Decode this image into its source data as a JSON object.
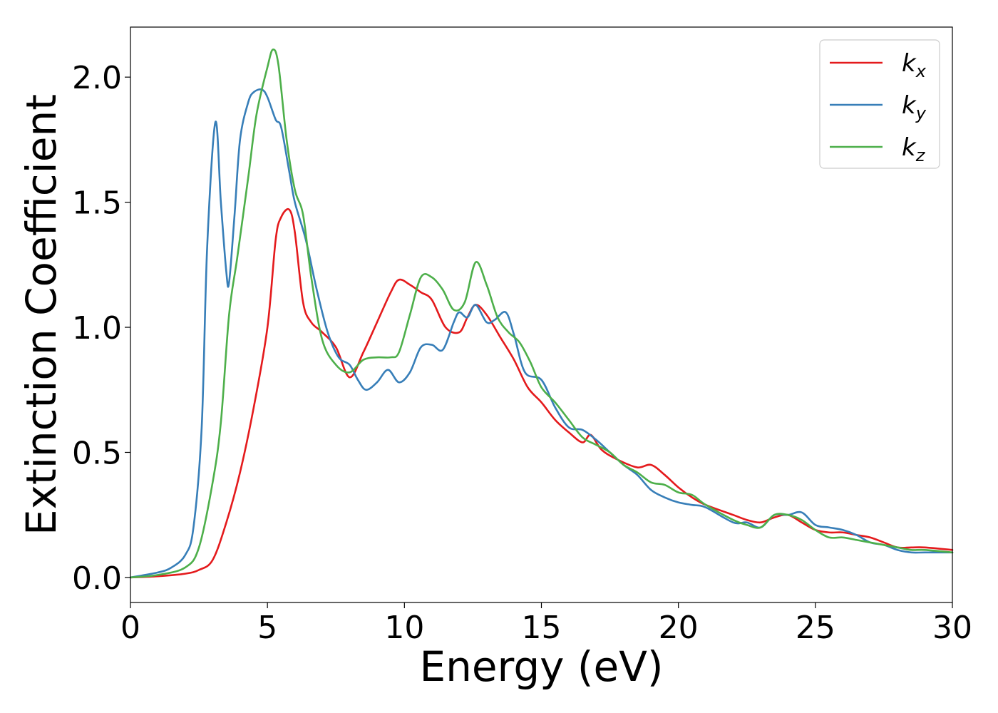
{
  "chart_data": {
    "type": "line",
    "title": "",
    "xlabel": "Energy (eV)",
    "ylabel": "Extinction Coefficient",
    "xlim": [
      0,
      30
    ],
    "ylim": [
      -0.1,
      2.2
    ],
    "xticks": [
      "0",
      "5",
      "10",
      "15",
      "20",
      "25",
      "30"
    ],
    "yticks": [
      "0.0",
      "0.5",
      "1.0",
      "1.5",
      "2.0"
    ],
    "grid": false,
    "legend_position": "top-right",
    "series": [
      {
        "name": "k_x",
        "label_main": "k",
        "label_sub": "x",
        "color": "#e41a1c",
        "x": [
          0,
          1,
          2,
          2.5,
          3,
          3.5,
          4,
          4.5,
          5,
          5.3,
          5.5,
          5.8,
          6,
          6.3,
          6.6,
          7,
          7.5,
          8,
          8.5,
          9,
          9.5,
          9.8,
          10.2,
          10.6,
          11,
          11.5,
          12,
          12.3,
          12.6,
          13,
          13.5,
          14,
          14.5,
          15,
          15.5,
          16,
          16.5,
          16.8,
          17.2,
          17.8,
          18.5,
          19,
          19.5,
          20,
          20.5,
          21,
          22,
          22.5,
          23,
          23.5,
          24,
          24.5,
          25,
          25.5,
          26,
          26.5,
          27,
          27.5,
          28,
          28.5,
          29,
          30
        ],
        "values": [
          0.0,
          0.005,
          0.015,
          0.03,
          0.07,
          0.22,
          0.42,
          0.68,
          1.0,
          1.35,
          1.44,
          1.47,
          1.38,
          1.1,
          1.02,
          0.98,
          0.92,
          0.8,
          0.9,
          1.02,
          1.14,
          1.19,
          1.17,
          1.14,
          1.11,
          1.0,
          0.98,
          1.04,
          1.09,
          1.05,
          0.96,
          0.87,
          0.76,
          0.7,
          0.63,
          0.58,
          0.54,
          0.57,
          0.51,
          0.47,
          0.44,
          0.45,
          0.41,
          0.36,
          0.32,
          0.29,
          0.25,
          0.23,
          0.22,
          0.24,
          0.25,
          0.22,
          0.19,
          0.18,
          0.18,
          0.17,
          0.16,
          0.14,
          0.12,
          0.12,
          0.12,
          0.11
        ]
      },
      {
        "name": "k_y",
        "label_main": "k",
        "label_sub": "y",
        "color": "#377eb8",
        "x": [
          0,
          1,
          1.5,
          2,
          2.3,
          2.6,
          2.8,
          3.1,
          3.3,
          3.5,
          3.6,
          3.8,
          4,
          4.3,
          4.5,
          4.8,
          5,
          5.3,
          5.5,
          5.8,
          6,
          6.4,
          6.8,
          7.2,
          7.6,
          8,
          8.3,
          8.6,
          9,
          9.4,
          9.8,
          10.2,
          10.6,
          11,
          11.4,
          11.8,
          12,
          12.3,
          12.6,
          13,
          13.3,
          13.7,
          14,
          14.4,
          15,
          15.5,
          16,
          16.5,
          17,
          17.5,
          18,
          18.5,
          19,
          19.5,
          20,
          20.5,
          21,
          22,
          22.5,
          23,
          23.5,
          24,
          24.5,
          25,
          25.5,
          26,
          26.5,
          27,
          27.5,
          28,
          28.5,
          29,
          30
        ],
        "values": [
          0.0,
          0.02,
          0.04,
          0.09,
          0.2,
          0.6,
          1.32,
          1.82,
          1.5,
          1.22,
          1.18,
          1.45,
          1.75,
          1.9,
          1.94,
          1.95,
          1.92,
          1.83,
          1.8,
          1.62,
          1.5,
          1.35,
          1.15,
          0.98,
          0.88,
          0.85,
          0.79,
          0.75,
          0.78,
          0.83,
          0.78,
          0.82,
          0.92,
          0.93,
          0.91,
          1.02,
          1.06,
          1.04,
          1.09,
          1.02,
          1.03,
          1.06,
          0.97,
          0.82,
          0.79,
          0.68,
          0.6,
          0.59,
          0.55,
          0.5,
          0.45,
          0.41,
          0.35,
          0.32,
          0.3,
          0.29,
          0.28,
          0.22,
          0.22,
          0.2,
          0.25,
          0.25,
          0.26,
          0.21,
          0.2,
          0.19,
          0.17,
          0.14,
          0.13,
          0.11,
          0.1,
          0.1,
          0.1
        ]
      },
      {
        "name": "k_z",
        "label_main": "k",
        "label_sub": "z",
        "color": "#4daf4a",
        "x": [
          0,
          1,
          2,
          2.5,
          3,
          3.3,
          3.6,
          3.9,
          4.3,
          4.6,
          5,
          5.2,
          5.4,
          5.7,
          6,
          6.3,
          6.6,
          7,
          7.5,
          8,
          8.5,
          9,
          9.5,
          9.8,
          10.2,
          10.6,
          11,
          11.4,
          11.8,
          12.2,
          12.6,
          13,
          13.4,
          13.8,
          14.2,
          14.6,
          15,
          15.5,
          16,
          16.5,
          17,
          17.5,
          18,
          18.5,
          19,
          19.5,
          20,
          20.5,
          21,
          22,
          22.5,
          23,
          23.5,
          24,
          24.5,
          25,
          25.5,
          26,
          26.5,
          27,
          27.5,
          28,
          28.5,
          29,
          30
        ],
        "values": [
          0.0,
          0.01,
          0.04,
          0.12,
          0.38,
          0.62,
          1.05,
          1.28,
          1.6,
          1.85,
          2.04,
          2.11,
          2.05,
          1.75,
          1.55,
          1.45,
          1.2,
          0.95,
          0.85,
          0.82,
          0.87,
          0.88,
          0.88,
          0.9,
          1.05,
          1.2,
          1.2,
          1.15,
          1.07,
          1.1,
          1.26,
          1.17,
          1.04,
          0.98,
          0.94,
          0.86,
          0.76,
          0.7,
          0.63,
          0.56,
          0.53,
          0.5,
          0.45,
          0.42,
          0.38,
          0.37,
          0.34,
          0.33,
          0.29,
          0.23,
          0.21,
          0.2,
          0.25,
          0.25,
          0.23,
          0.19,
          0.16,
          0.16,
          0.15,
          0.14,
          0.13,
          0.12,
          0.11,
          0.11,
          0.1
        ]
      }
    ]
  }
}
